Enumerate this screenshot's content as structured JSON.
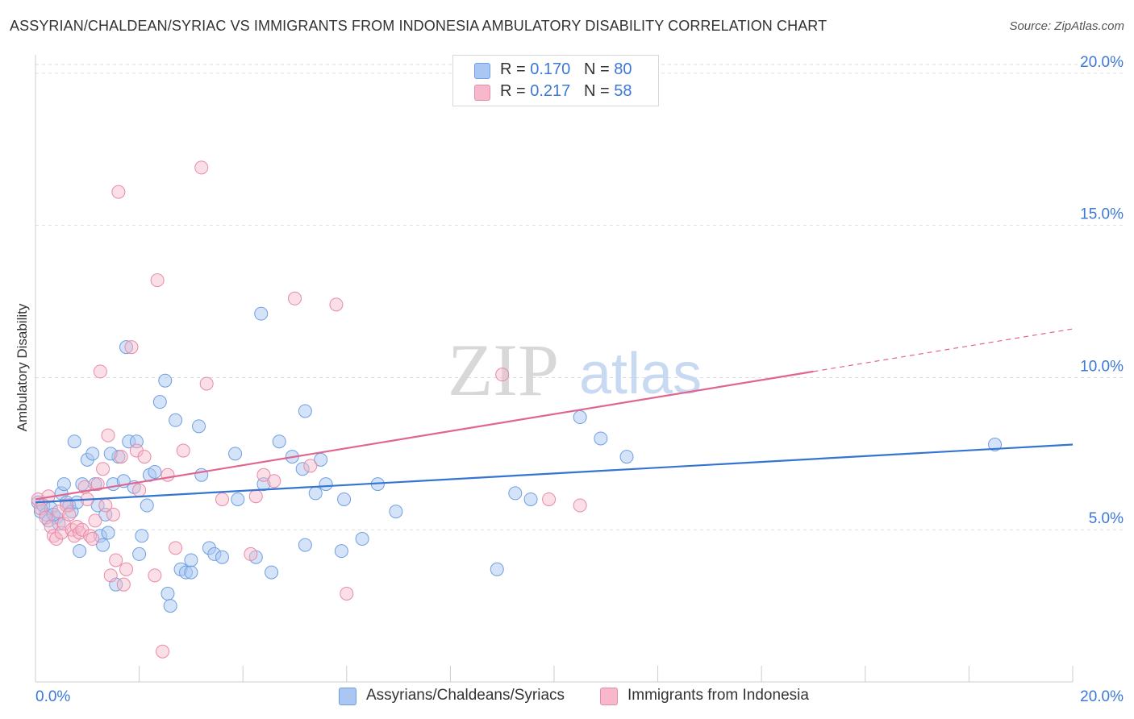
{
  "title": "ASSYRIAN/CHALDEAN/SYRIAC VS IMMIGRANTS FROM INDONESIA AMBULATORY DISABILITY CORRELATION CHART",
  "source": "Source: ZipAtlas.com",
  "watermark": {
    "zip": "ZIP",
    "atlas": "atlas"
  },
  "legend": [
    {
      "r_label": "R = ",
      "r_value": "0.170",
      "n_label": "N = ",
      "n_value": "80",
      "color": "#a9c7f2"
    },
    {
      "r_label": "R = ",
      "r_value": "0.217",
      "n_label": "N = ",
      "n_value": "58",
      "color": "#f6b8ca"
    }
  ],
  "colors": {
    "blue_fill": "#a9c7f2",
    "blue_stroke": "#6f9fe0",
    "blue_line": "#3474d4",
    "pink_fill": "#f6b8ca",
    "pink_stroke": "#e88aa8",
    "pink_line": "#e0668f",
    "tick_label": "#3b78d8",
    "grid": "#dddddd"
  },
  "chart_data": {
    "type": "scatter",
    "title": "ASSYRIAN/CHALDEAN/SYRIAC VS IMMIGRANTS FROM INDONESIA AMBULATORY DISABILITY CORRELATION CHART",
    "xlabel": "",
    "ylabel": "Ambulatory Disability",
    "xlim": [
      0,
      20
    ],
    "ylim": [
      0,
      20.5
    ],
    "x_tick_labels": [
      "0.0%",
      "20.0%"
    ],
    "y_ticks": [
      5,
      10,
      15,
      20
    ],
    "y_tick_labels": [
      "5.0%",
      "10.0%",
      "15.0%",
      "20.0%"
    ],
    "grid": true,
    "legend_position": "top-center",
    "series": [
      {
        "name": "Assyrians/Chaldeans/Syriacs",
        "r": 0.17,
        "n": 80,
        "trend": {
          "x": [
            0,
            20
          ],
          "y": [
            5.9,
            7.8
          ]
        },
        "points": [
          [
            0.05,
            5.9
          ],
          [
            0.1,
            5.6
          ],
          [
            0.15,
            5.8
          ],
          [
            0.2,
            5.5
          ],
          [
            0.25,
            5.3
          ],
          [
            0.3,
            5.7
          ],
          [
            0.4,
            5.4
          ],
          [
            0.45,
            5.2
          ],
          [
            0.5,
            6.2
          ],
          [
            0.55,
            6.5
          ],
          [
            0.6,
            5.9
          ],
          [
            0.65,
            5.8
          ],
          [
            0.7,
            5.6
          ],
          [
            0.75,
            7.9
          ],
          [
            0.8,
            5.9
          ],
          [
            0.85,
            4.3
          ],
          [
            0.9,
            6.5
          ],
          [
            1.0,
            7.3
          ],
          [
            1.1,
            7.5
          ],
          [
            1.15,
            6.5
          ],
          [
            1.2,
            5.8
          ],
          [
            1.25,
            4.8
          ],
          [
            1.3,
            4.5
          ],
          [
            1.35,
            5.5
          ],
          [
            1.4,
            4.9
          ],
          [
            1.5,
            6.5
          ],
          [
            1.55,
            3.2
          ],
          [
            1.6,
            7.4
          ],
          [
            1.7,
            6.6
          ],
          [
            1.75,
            11.0
          ],
          [
            1.8,
            7.9
          ],
          [
            1.9,
            6.4
          ],
          [
            2.0,
            4.2
          ],
          [
            2.05,
            4.8
          ],
          [
            2.15,
            5.8
          ],
          [
            2.2,
            6.8
          ],
          [
            2.3,
            6.9
          ],
          [
            2.4,
            9.2
          ],
          [
            2.5,
            9.9
          ],
          [
            2.55,
            2.9
          ],
          [
            2.6,
            2.5
          ],
          [
            2.7,
            8.6
          ],
          [
            2.8,
            3.7
          ],
          [
            2.9,
            3.6
          ],
          [
            3.0,
            4.0
          ],
          [
            3.15,
            8.4
          ],
          [
            3.2,
            6.8
          ],
          [
            3.35,
            4.4
          ],
          [
            3.45,
            4.2
          ],
          [
            3.6,
            4.1
          ],
          [
            3.85,
            7.5
          ],
          [
            3.9,
            6.0
          ],
          [
            4.25,
            4.1
          ],
          [
            4.35,
            12.1
          ],
          [
            4.4,
            6.5
          ],
          [
            4.55,
            3.6
          ],
          [
            4.7,
            7.9
          ],
          [
            4.95,
            7.4
          ],
          [
            5.15,
            7.0
          ],
          [
            5.2,
            8.9
          ],
          [
            5.4,
            6.2
          ],
          [
            5.5,
            7.3
          ],
          [
            5.6,
            6.5
          ],
          [
            5.9,
            4.3
          ],
          [
            5.95,
            6.0
          ],
          [
            6.3,
            4.7
          ],
          [
            6.6,
            6.5
          ],
          [
            6.95,
            5.6
          ],
          [
            8.9,
            3.7
          ],
          [
            9.25,
            6.2
          ],
          [
            9.55,
            6.0
          ],
          [
            10.5,
            8.7
          ],
          [
            10.9,
            8.0
          ],
          [
            11.4,
            7.4
          ],
          [
            18.5,
            7.8
          ],
          [
            1.45,
            7.5
          ],
          [
            1.95,
            7.9
          ],
          [
            3.0,
            3.6
          ],
          [
            5.2,
            4.5
          ],
          [
            0.35,
            5.5
          ]
        ]
      },
      {
        "name": "Immigrants from Indonesia",
        "r": 0.217,
        "n": 58,
        "trend": {
          "x": [
            0,
            15
          ],
          "y": [
            6.0,
            10.2
          ]
        },
        "trend_dashed": {
          "x": [
            15,
            20
          ],
          "y": [
            10.2,
            11.6
          ]
        },
        "points": [
          [
            0.05,
            6.0
          ],
          [
            0.1,
            5.7
          ],
          [
            0.2,
            5.4
          ],
          [
            0.3,
            5.1
          ],
          [
            0.35,
            4.8
          ],
          [
            0.4,
            4.7
          ],
          [
            0.45,
            5.6
          ],
          [
            0.5,
            4.9
          ],
          [
            0.55,
            5.2
          ],
          [
            0.6,
            5.8
          ],
          [
            0.7,
            5.0
          ],
          [
            0.75,
            4.8
          ],
          [
            0.8,
            5.1
          ],
          [
            0.85,
            4.9
          ],
          [
            0.9,
            5.0
          ],
          [
            0.95,
            6.4
          ],
          [
            1.0,
            6.0
          ],
          [
            1.05,
            4.8
          ],
          [
            1.1,
            4.7
          ],
          [
            1.15,
            5.3
          ],
          [
            1.2,
            6.5
          ],
          [
            1.25,
            10.2
          ],
          [
            1.3,
            7.0
          ],
          [
            1.4,
            8.1
          ],
          [
            1.45,
            3.5
          ],
          [
            1.5,
            5.5
          ],
          [
            1.55,
            4.0
          ],
          [
            1.6,
            16.1
          ],
          [
            1.65,
            7.4
          ],
          [
            1.7,
            3.2
          ],
          [
            1.75,
            3.7
          ],
          [
            1.85,
            11.0
          ],
          [
            1.95,
            7.6
          ],
          [
            2.0,
            6.3
          ],
          [
            2.1,
            7.4
          ],
          [
            2.3,
            3.5
          ],
          [
            2.35,
            13.2
          ],
          [
            2.45,
            1.0
          ],
          [
            2.55,
            6.8
          ],
          [
            2.7,
            4.4
          ],
          [
            2.85,
            7.6
          ],
          [
            3.2,
            16.9
          ],
          [
            3.3,
            9.8
          ],
          [
            4.15,
            4.2
          ],
          [
            4.25,
            6.1
          ],
          [
            4.4,
            6.8
          ],
          [
            4.6,
            6.6
          ],
          [
            5.0,
            12.6
          ],
          [
            5.3,
            7.1
          ],
          [
            5.8,
            12.4
          ],
          [
            6.0,
            2.9
          ],
          [
            9.0,
            10.1
          ],
          [
            9.9,
            6.0
          ],
          [
            10.5,
            5.8
          ],
          [
            0.65,
            5.5
          ],
          [
            1.35,
            5.8
          ],
          [
            0.25,
            6.1
          ],
          [
            3.6,
            6.0
          ]
        ]
      }
    ]
  }
}
